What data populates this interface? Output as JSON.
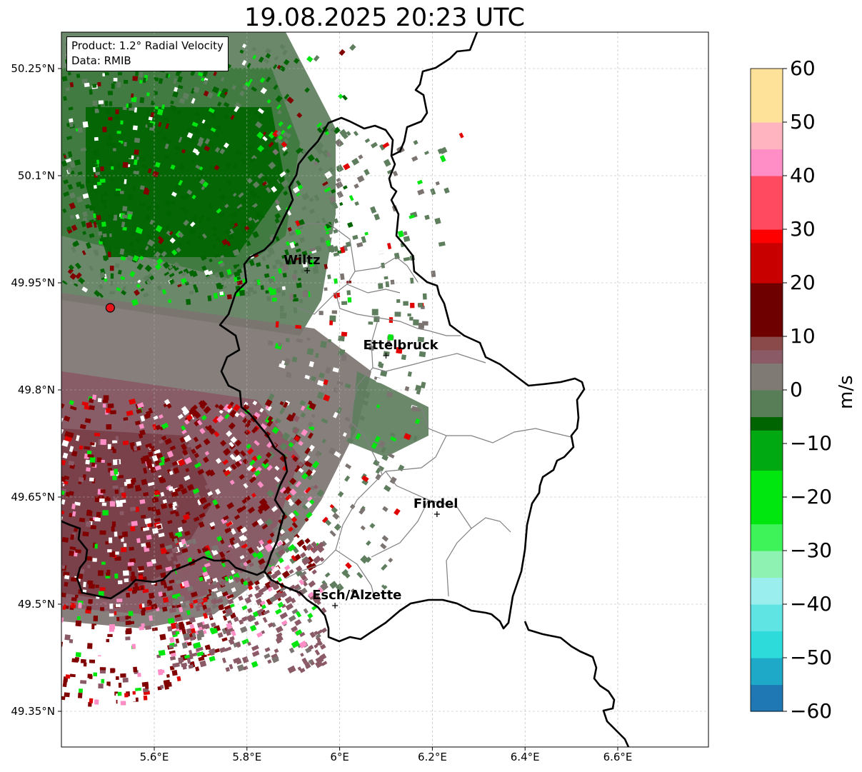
{
  "title": "19.08.2025 20:23 UTC",
  "info": {
    "product": "Product: 1.2° Radial Velocity",
    "data": "Data: RMIB"
  },
  "map": {
    "extent": {
      "lon_min": 5.4,
      "lon_max": 6.8,
      "lat_min": 49.3,
      "lat_max": 50.3
    },
    "lat_ticks": [
      {
        "value": 50.25,
        "label": "50.25°N"
      },
      {
        "value": 50.1,
        "label": "50.1°N"
      },
      {
        "value": 49.95,
        "label": "49.95°N"
      },
      {
        "value": 49.8,
        "label": "49.8°N"
      },
      {
        "value": 49.65,
        "label": "49.65°N"
      },
      {
        "value": 49.5,
        "label": "49.5°N"
      },
      {
        "value": 49.35,
        "label": "49.35°N"
      }
    ],
    "lon_ticks": [
      {
        "value": 5.6,
        "label": "5.6°E"
      },
      {
        "value": 5.8,
        "label": "5.8°E"
      },
      {
        "value": 6.0,
        "label": "6°E"
      },
      {
        "value": 6.2,
        "label": "6.2°E"
      },
      {
        "value": 6.4,
        "label": "6.4°E"
      },
      {
        "value": 6.6,
        "label": "6.6°E"
      }
    ],
    "radar_site": {
      "lon": 5.505,
      "lat": 49.915,
      "color": "#e8141c"
    },
    "cities": [
      {
        "name": "Wiltz",
        "lon": 5.93,
        "lat": 49.967
      },
      {
        "name": "Ettelbruck",
        "lon": 6.1,
        "lat": 49.848
      },
      {
        "name": "Findel",
        "lon": 6.21,
        "lat": 49.626
      },
      {
        "name": "Esch/Alzette",
        "lon": 5.99,
        "lat": 49.498
      }
    ]
  },
  "colorbar": {
    "unit": "m/s",
    "min": -60,
    "max": 60,
    "ticks": [
      {
        "value": 60,
        "label": "60"
      },
      {
        "value": 50,
        "label": "50"
      },
      {
        "value": 40,
        "label": "40"
      },
      {
        "value": 30,
        "label": "30"
      },
      {
        "value": 20,
        "label": "20"
      },
      {
        "value": 10,
        "label": "10"
      },
      {
        "value": 0,
        "label": "0"
      },
      {
        "value": -10,
        "label": "−10"
      },
      {
        "value": -20,
        "label": "−20"
      },
      {
        "value": -30,
        "label": "−30"
      },
      {
        "value": -40,
        "label": "−40"
      },
      {
        "value": -50,
        "label": "−50"
      },
      {
        "value": -60,
        "label": "−60"
      }
    ],
    "color_stops": [
      {
        "value": -60,
        "color": "#1f77b4"
      },
      {
        "value": -55,
        "color": "#1fa9c9"
      },
      {
        "value": -50,
        "color": "#2ddbdb"
      },
      {
        "value": -45,
        "color": "#5fe3e3"
      },
      {
        "value": -40,
        "color": "#9beeee"
      },
      {
        "value": -36,
        "color": "#c1f4f4"
      },
      {
        "value": -35,
        "color": "#8ef2b2"
      },
      {
        "value": -30,
        "color": "#3ef259"
      },
      {
        "value": -25,
        "color": "#00e60f"
      },
      {
        "value": -15,
        "color": "#00a812"
      },
      {
        "value": -8,
        "color": "#006400"
      },
      {
        "value": -5,
        "color": "#577e57"
      },
      {
        "value": 0,
        "color": "#7f7a73"
      },
      {
        "value": 5,
        "color": "#8a5a66"
      },
      {
        "value": 8,
        "color": "#8b4a4a"
      },
      {
        "value": 9,
        "color": "#6e0000"
      },
      {
        "value": 20,
        "color": "#c80000"
      },
      {
        "value": 28,
        "color": "#ff0000"
      },
      {
        "value": 30,
        "color": "#ff4a60"
      },
      {
        "value": 40,
        "color": "#ff8ec6"
      },
      {
        "value": 45,
        "color": "#ffb4c0"
      },
      {
        "value": 50,
        "color": "#ffe29a"
      },
      {
        "value": 60,
        "color": "#ff9c50"
      }
    ]
  },
  "colors": {
    "velocity_green_dark": "#006400",
    "velocity_green_mid": "#5e7e5e",
    "velocity_gray": "#7c7470",
    "velocity_maroon": "#8a5a66",
    "velocity_dark_red": "#800000",
    "velocity_bright_green": "#00e60f",
    "velocity_red": "#e00000",
    "velocity_pink": "#ff8ec6",
    "border": "#000000",
    "canton_border": "#808080",
    "grid": "#b0b0b0"
  }
}
